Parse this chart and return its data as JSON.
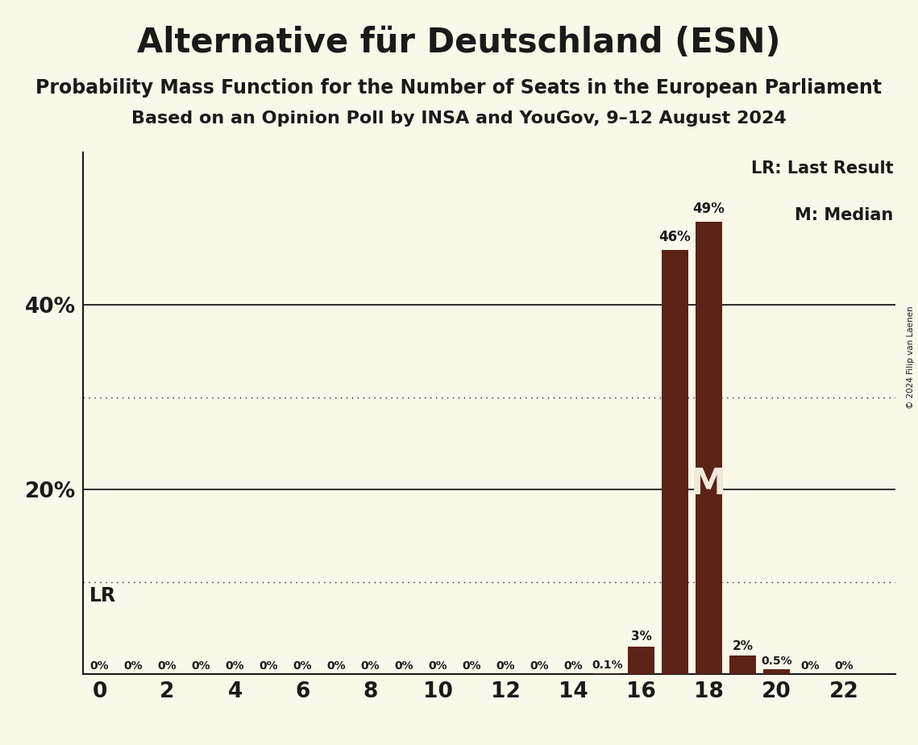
{
  "title": "Alternative für Deutschland (ESN)",
  "subtitle1": "Probability Mass Function for the Number of Seats in the European Parliament",
  "subtitle2": "Based on an Opinion Poll by INSA and YouGov, 9–12 August 2024",
  "copyright": "© 2024 Filip van Laenen",
  "background_color": "#faf8e8",
  "bar_color": "#5c2318",
  "x_min": -0.5,
  "x_max": 23.5,
  "y_min": 0,
  "y_max": 0.565,
  "seats": [
    0,
    1,
    2,
    3,
    4,
    5,
    6,
    7,
    8,
    9,
    10,
    11,
    12,
    13,
    14,
    15,
    16,
    17,
    18,
    19,
    20,
    21,
    22
  ],
  "probabilities": [
    0.0,
    0.0,
    0.0,
    0.0,
    0.0,
    0.0,
    0.0,
    0.0,
    0.0,
    0.0,
    0.0,
    0.0,
    0.0,
    0.0,
    0.0,
    0.001,
    0.03,
    0.46,
    0.49,
    0.02,
    0.005,
    0.0,
    0.0
  ],
  "bar_labels": [
    "0%",
    "0%",
    "0%",
    "0%",
    "0%",
    "0%",
    "0%",
    "0%",
    "0%",
    "0%",
    "0%",
    "0%",
    "0%",
    "0%",
    "0%",
    "0.1%",
    "3%",
    "46%",
    "49%",
    "2%",
    "0.5%",
    "0%",
    "0%"
  ],
  "xticks": [
    0,
    2,
    4,
    6,
    8,
    10,
    12,
    14,
    16,
    18,
    20,
    22
  ],
  "ytick_positions": [
    0.2,
    0.4
  ],
  "ytick_labels": [
    "20%",
    "40%"
  ],
  "solid_gridlines": [
    0.2,
    0.4
  ],
  "dotted_gridlines": [
    0.1,
    0.3
  ],
  "lr_seat": 15,
  "median_seat": 18,
  "legend_lr": "LR: Last Result",
  "legend_m": "M: Median",
  "text_color": "#1a1a1a",
  "median_text_color": "#f0e8d8"
}
